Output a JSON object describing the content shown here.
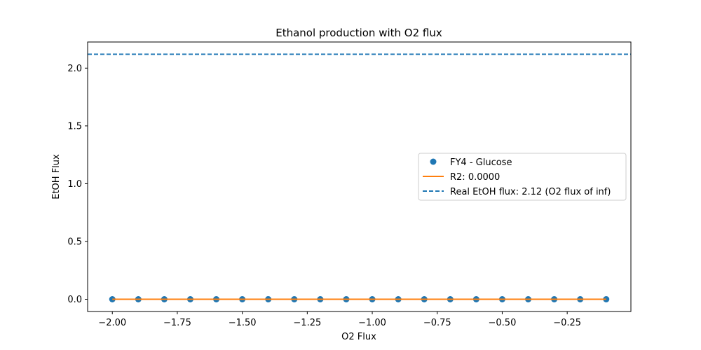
{
  "chart_data": {
    "type": "scatter",
    "title": "Ethanol production with O2 flux",
    "xlabel": "O2 Flux",
    "ylabel": "EtOH Flux",
    "xlim": [
      -2.095,
      -0.005
    ],
    "ylim": [
      -0.106,
      2.226
    ],
    "xticks": [
      "−2.00",
      "−1.75",
      "−1.50",
      "−1.25",
      "−1.00",
      "−0.75",
      "−0.50",
      "−0.25"
    ],
    "xtick_values": [
      -2.0,
      -1.75,
      -1.5,
      -1.25,
      -1.0,
      -0.75,
      -0.5,
      -0.25
    ],
    "yticks": [
      "0.0",
      "0.5",
      "1.0",
      "1.5",
      "2.0"
    ],
    "ytick_values": [
      0.0,
      0.5,
      1.0,
      1.5,
      2.0
    ],
    "grid": false,
    "legend_position": "center-right",
    "series": [
      {
        "name": "FY4 - Glucose",
        "kind": "scatter",
        "color": "#1f77b4",
        "x": [
          -2.0,
          -1.9,
          -1.8,
          -1.7,
          -1.6,
          -1.5,
          -1.4,
          -1.3,
          -1.2,
          -1.1,
          -1.0,
          -0.9,
          -0.8,
          -0.7,
          -0.6,
          -0.5,
          -0.4,
          -0.3,
          -0.2,
          -0.1
        ],
        "y": [
          0,
          0,
          0,
          0,
          0,
          0,
          0,
          0,
          0,
          0,
          0,
          0,
          0,
          0,
          0,
          0,
          0,
          0,
          0,
          0
        ]
      },
      {
        "name": "R2: 0.0000",
        "kind": "line",
        "color": "#ff7f0e",
        "x": [
          -2.0,
          -0.1
        ],
        "y": [
          0,
          0
        ]
      },
      {
        "name": "Real EtOH flux: 2.12 (O2 flux of inf)",
        "kind": "hline-dashed",
        "color": "#1f77b4",
        "y": 2.12
      }
    ]
  }
}
